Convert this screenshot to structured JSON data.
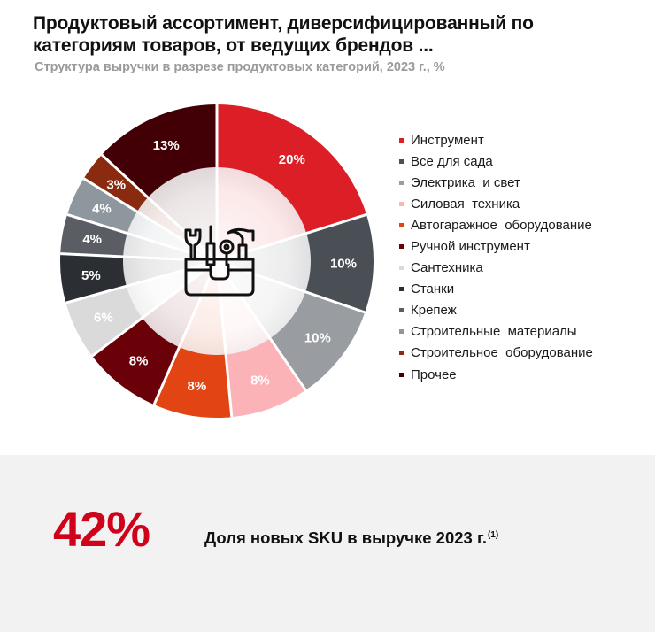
{
  "header": {
    "title": "Продуктовый ассортимент, диверсифицированный по категориям товаров, от ведущих брендов ...",
    "subtitle": "Структура выручки в разрезе продуктовых категорий, 2023 г., %"
  },
  "chart_data": {
    "type": "pie",
    "subtype": "donut",
    "title": "Структура выручки в разрезе продуктовых категорий, 2023 г., %",
    "start_angle": "12 o'clock, clockwise",
    "legend_position": "right",
    "center_icon": "toolbox-icon",
    "categories": [
      "Инструмент",
      "Все для сада",
      "Электрика  и свет",
      "Силовая  техника",
      "Автогаражное  оборудование",
      "Ручной инструмент",
      "Сантехника",
      "Станки",
      "Крепеж",
      "Строительные  материалы",
      "Строительное  оборудование",
      "Прочее"
    ],
    "values": [
      20,
      10,
      10,
      8,
      8,
      8,
      6,
      5,
      4,
      4,
      3,
      13
    ],
    "labels": [
      "20%",
      "10%",
      "10%",
      "8%",
      "8%",
      "8%",
      "6%",
      "5%",
      "4%",
      "4%",
      "3%",
      "13%"
    ],
    "colors": [
      "#dc1f26",
      "#4a4f55",
      "#999ca1",
      "#fbb3b8",
      "#e24414",
      "#6a0008",
      "#dadada",
      "#2b2e33",
      "#5a5e64",
      "#8e969e",
      "#8a2a0e",
      "#420006"
    ]
  },
  "kpi": {
    "value": "42%",
    "label": "Доля новых SKU в выручке 2023 г.",
    "footnote": "(1)",
    "color": "#d0021b"
  }
}
